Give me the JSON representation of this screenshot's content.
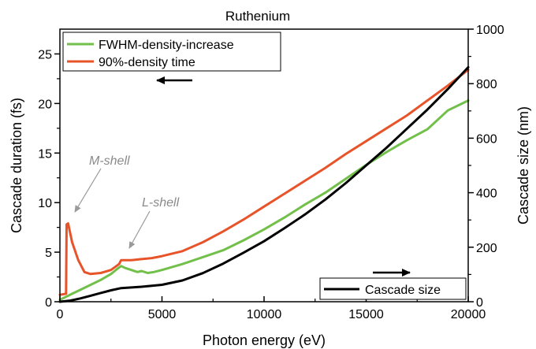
{
  "chart_data": {
    "type": "line",
    "title": "Ruthenium",
    "xlabel": "Photon energy (eV)",
    "ylabel_left": "Cascade duration (fs)",
    "ylabel_right": "Cascade size (nm)",
    "xlim": [
      0,
      20000
    ],
    "ylim_left": [
      0,
      27.5
    ],
    "ylim_right": [
      0,
      1000
    ],
    "x_ticks": [
      0,
      5000,
      10000,
      15000,
      20000
    ],
    "x_tick_labels": [
      "0",
      "5000",
      "10000",
      "15000",
      "20000"
    ],
    "y_left_ticks": [
      0,
      5,
      10,
      15,
      20,
      25
    ],
    "y_left_tick_labels": [
      "0",
      "5",
      "10",
      "15",
      "20",
      "25"
    ],
    "y_right_ticks": [
      0,
      200,
      400,
      600,
      800,
      1000
    ],
    "y_right_tick_labels": [
      "0",
      "200",
      "400",
      "600",
      "800",
      "1000"
    ],
    "grid": false,
    "legend_top": {
      "placement": "top-left",
      "entries": [
        "FWHM-density-increase",
        "90%-density time"
      ]
    },
    "legend_bottom": {
      "placement": "bottom-right",
      "entries": [
        "Cascade size"
      ]
    },
    "annotations": [
      {
        "text": "M-shell",
        "x": 1300,
        "y": 14.3
      },
      {
        "text": "L-shell",
        "x": 4000,
        "y": 10.0
      }
    ],
    "series": [
      {
        "name": "FWHM-density-increase",
        "axis": "left",
        "color": "#72c04a",
        "x": [
          0,
          300,
          600,
          1000,
          1500,
          2000,
          2500,
          2800,
          3000,
          3200,
          3500,
          3800,
          4000,
          4300,
          4600,
          5000,
          6000,
          7000,
          8000,
          9000,
          10000,
          11000,
          12000,
          13000,
          14000,
          15000,
          16000,
          17000,
          18000,
          19000,
          20000
        ],
        "values": [
          0.2,
          0.5,
          0.8,
          1.2,
          1.7,
          2.2,
          2.8,
          3.3,
          3.6,
          3.4,
          3.2,
          3.0,
          3.1,
          2.9,
          3.0,
          3.2,
          3.8,
          4.5,
          5.2,
          6.2,
          7.3,
          8.5,
          9.8,
          11.0,
          12.4,
          13.8,
          15.1,
          16.3,
          17.4,
          19.3,
          20.3
        ]
      },
      {
        "name": "90%-density time",
        "axis": "left",
        "color": "#e8542a",
        "x": [
          0,
          300,
          330,
          400,
          600,
          900,
          1200,
          1500,
          2000,
          2500,
          2900,
          3000,
          3500,
          4000,
          4500,
          5000,
          6000,
          7000,
          8000,
          9000,
          10000,
          11000,
          12000,
          13000,
          14000,
          15000,
          16000,
          17000,
          18000,
          19000,
          20000
        ],
        "values": [
          0.7,
          0.8,
          7.8,
          7.9,
          6.0,
          4.2,
          3.0,
          2.8,
          2.9,
          3.2,
          3.8,
          4.2,
          4.2,
          4.3,
          4.4,
          4.6,
          5.1,
          6.0,
          7.1,
          8.3,
          9.6,
          10.9,
          12.2,
          13.5,
          14.9,
          16.2,
          17.5,
          18.8,
          20.3,
          21.8,
          23.4
        ]
      },
      {
        "name": "Cascade size",
        "axis": "right",
        "color": "#000000",
        "x": [
          0,
          500,
          1000,
          1500,
          2000,
          2500,
          3000,
          4000,
          5000,
          6000,
          7000,
          8000,
          9000,
          10000,
          11000,
          12000,
          13000,
          14000,
          15000,
          16000,
          17000,
          18000,
          19000,
          20000
        ],
        "values": [
          0,
          4,
          12,
          22,
          32,
          42,
          50,
          55,
          62,
          78,
          105,
          140,
          180,
          222,
          270,
          320,
          375,
          435,
          500,
          565,
          635,
          705,
          780,
          860
        ]
      }
    ]
  }
}
